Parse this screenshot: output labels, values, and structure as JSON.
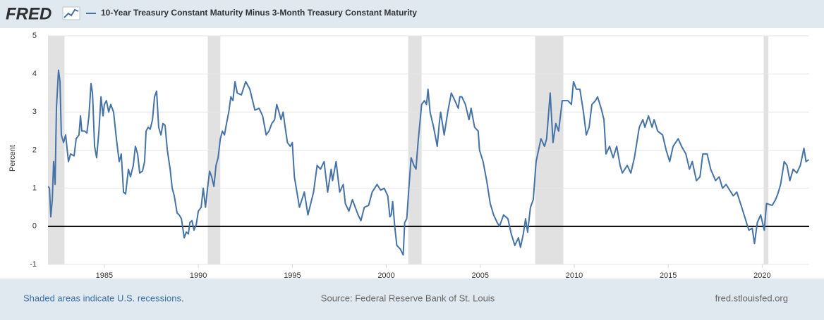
{
  "header": {
    "logo": "FRED"
  },
  "chart_data": {
    "type": "line",
    "y_label": "Percent",
    "xlim": [
      1982,
      2022.5
    ],
    "xticks": [
      1985,
      1990,
      1995,
      2000,
      2005,
      2010,
      2015,
      2020
    ],
    "ylim": [
      -1,
      5
    ],
    "yticks": [
      -1,
      0,
      1,
      2,
      3,
      4,
      5
    ],
    "grid": true,
    "recession_color": "#e1e1e1",
    "recessions": [
      [
        1981.5,
        1982.88
      ],
      [
        1990.5,
        1991.17
      ],
      [
        2001.17,
        2001.88
      ],
      [
        2007.92,
        2009.42
      ],
      [
        2020.08,
        2020.33
      ]
    ],
    "x": [
      1982.0,
      1982.08,
      1982.15,
      1982.23,
      1982.3,
      1982.38,
      1982.45,
      1982.56,
      1982.64,
      1982.71,
      1982.83,
      1982.94,
      1983.09,
      1983.2,
      1983.39,
      1983.5,
      1983.65,
      1983.73,
      1983.8,
      1983.95,
      1984.07,
      1984.18,
      1984.29,
      1984.37,
      1984.48,
      1984.59,
      1984.71,
      1984.82,
      1984.93,
      1985.0,
      1985.11,
      1985.23,
      1985.34,
      1985.49,
      1985.64,
      1985.79,
      1985.9,
      1986.02,
      1986.13,
      1986.28,
      1986.39,
      1986.54,
      1986.65,
      1986.77,
      1986.88,
      1987.03,
      1987.14,
      1987.22,
      1987.33,
      1987.44,
      1987.56,
      1987.67,
      1987.78,
      1987.89,
      1988.01,
      1988.12,
      1988.23,
      1988.35,
      1988.5,
      1988.61,
      1988.72,
      1988.87,
      1988.98,
      1989.1,
      1989.25,
      1989.36,
      1989.47,
      1989.55,
      1989.66,
      1989.77,
      1989.89,
      1990.0,
      1990.15,
      1990.26,
      1990.38,
      1990.49,
      1990.6,
      1990.71,
      1990.83,
      1990.94,
      1991.05,
      1991.17,
      1991.28,
      1991.39,
      1991.5,
      1991.62,
      1991.73,
      1991.84,
      1991.95,
      1992.07,
      1992.29,
      1992.52,
      1992.74,
      1993.01,
      1993.23,
      1993.42,
      1993.61,
      1993.76,
      1993.91,
      1994.06,
      1994.17,
      1994.29,
      1994.4,
      1994.51,
      1994.62,
      1994.74,
      1994.89,
      1995.0,
      1995.11,
      1995.38,
      1995.64,
      1995.83,
      1996.13,
      1996.32,
      1996.5,
      1996.69,
      1996.88,
      1997.07,
      1997.14,
      1997.33,
      1997.52,
      1997.71,
      1997.82,
      1998.01,
      1998.2,
      1998.5,
      1998.65,
      1998.83,
      1999.06,
      1999.25,
      1999.51,
      1999.7,
      1999.89,
      2000.08,
      2000.19,
      2000.26,
      2000.34,
      2000.45,
      2000.56,
      2000.75,
      2000.9,
      2000.98,
      2001.09,
      2001.2,
      2001.32,
      2001.47,
      2001.58,
      2001.69,
      2001.88,
      2002.03,
      2002.14,
      2002.22,
      2002.33,
      2002.52,
      2002.71,
      2002.82,
      2002.89,
      2003.08,
      2003.27,
      2003.46,
      2003.65,
      2003.83,
      2003.91,
      2004.02,
      2004.21,
      2004.4,
      2004.51,
      2004.7,
      2004.89,
      2004.96,
      2005.15,
      2005.34,
      2005.53,
      2005.71,
      2005.9,
      2006.02,
      2006.24,
      2006.47,
      2006.65,
      2006.84,
      2007.03,
      2007.14,
      2007.29,
      2007.41,
      2007.52,
      2007.67,
      2007.82,
      2007.97,
      2008.23,
      2008.42,
      2008.53,
      2008.72,
      2008.87,
      2009.02,
      2009.17,
      2009.36,
      2009.66,
      2009.85,
      2009.96,
      2010.11,
      2010.3,
      2010.49,
      2010.64,
      2010.79,
      2010.94,
      2011.13,
      2011.24,
      2011.43,
      2011.58,
      2011.69,
      2011.88,
      2012.07,
      2012.26,
      2012.44,
      2012.56,
      2012.82,
      2013.01,
      2013.2,
      2013.46,
      2013.65,
      2013.76,
      2013.95,
      2014.14,
      2014.25,
      2014.44,
      2014.7,
      2014.89,
      2015.08,
      2015.26,
      2015.53,
      2015.71,
      2015.94,
      2016.13,
      2016.28,
      2016.5,
      2016.69,
      2016.84,
      2017.07,
      2017.26,
      2017.52,
      2017.71,
      2017.89,
      2018.08,
      2018.46,
      2018.65,
      2018.91,
      2019.1,
      2019.29,
      2019.47,
      2019.59,
      2019.74,
      2019.92,
      2020.11,
      2020.23,
      2020.53,
      2020.71,
      2020.83,
      2020.98,
      2021.17,
      2021.32,
      2021.47,
      2021.65,
      2021.84,
      2022.03,
      2022.22,
      2022.33,
      2022.48
    ],
    "series": [
      {
        "name": "10-Year Treasury Constant Maturity Minus 3-Month Treasury Constant Maturity",
        "color": "#4572a7",
        "values": [
          1.05,
          1.0,
          0.25,
          0.7,
          1.7,
          1.1,
          3.1,
          4.1,
          3.8,
          2.4,
          2.2,
          2.4,
          1.7,
          1.9,
          1.85,
          2.3,
          2.4,
          2.9,
          2.5,
          2.5,
          2.45,
          2.9,
          3.75,
          3.5,
          2.1,
          1.8,
          2.5,
          3.4,
          2.9,
          3.2,
          3.3,
          3.0,
          3.2,
          3.0,
          2.3,
          1.7,
          1.9,
          0.9,
          0.85,
          1.5,
          1.3,
          1.6,
          2.1,
          1.9,
          1.4,
          1.45,
          1.7,
          2.5,
          2.6,
          2.55,
          2.8,
          3.4,
          3.55,
          2.6,
          2.4,
          2.7,
          2.65,
          2.0,
          1.5,
          1.0,
          0.8,
          0.35,
          0.3,
          0.2,
          -0.3,
          -0.15,
          -0.2,
          0.1,
          0.15,
          -0.1,
          0.05,
          0.4,
          0.5,
          1.0,
          0.5,
          1.0,
          1.45,
          1.3,
          1.05,
          1.6,
          1.8,
          2.3,
          2.5,
          2.4,
          2.7,
          3.0,
          3.4,
          3.3,
          3.8,
          3.5,
          3.45,
          3.8,
          3.6,
          3.05,
          3.1,
          2.9,
          2.4,
          2.5,
          2.7,
          2.8,
          3.2,
          3.0,
          2.8,
          3.0,
          2.6,
          2.2,
          2.1,
          2.2,
          1.3,
          0.5,
          0.9,
          0.3,
          0.9,
          1.6,
          1.5,
          1.7,
          0.9,
          1.5,
          1.2,
          1.7,
          0.9,
          1.1,
          0.6,
          0.4,
          0.7,
          0.3,
          0.15,
          0.5,
          0.55,
          0.9,
          1.1,
          0.95,
          1.0,
          0.8,
          0.25,
          0.3,
          0.65,
          0,
          -0.5,
          -0.6,
          -0.75,
          0.1,
          0.2,
          1.0,
          1.8,
          1.6,
          1.5,
          2.2,
          3.2,
          3.3,
          3.2,
          3.6,
          3.0,
          2.6,
          2.1,
          2.7,
          3.0,
          2.4,
          3.0,
          3.5,
          3.3,
          3.1,
          3.4,
          3.4,
          3.2,
          2.8,
          3.1,
          2.6,
          2.5,
          2.0,
          1.7,
          1.2,
          0.6,
          0.3,
          0.1,
          0,
          0.3,
          0.2,
          -0.2,
          -0.5,
          -0.3,
          -0.55,
          -0.2,
          0.2,
          -0.15,
          0.5,
          0.7,
          1.7,
          2.3,
          2.1,
          2.3,
          3.5,
          2.2,
          2.7,
          2.5,
          3.3,
          3.3,
          3.2,
          3.8,
          3.6,
          3.6,
          3.0,
          2.4,
          2.6,
          3.2,
          3.3,
          3.4,
          3.1,
          2.8,
          1.9,
          2.1,
          1.8,
          2.1,
          1.6,
          1.4,
          1.6,
          1.4,
          1.8,
          2.6,
          2.8,
          2.6,
          2.9,
          2.6,
          2.8,
          2.5,
          2.4,
          2.0,
          1.7,
          2.1,
          2.3,
          2.1,
          1.9,
          1.5,
          1.7,
          1.2,
          1.3,
          1.9,
          1.9,
          1.5,
          1.2,
          1.3,
          1.0,
          1.1,
          0.8,
          0.9,
          0.5,
          0.2,
          -0.1,
          -0.05,
          -0.45,
          0.1,
          0.3,
          -0.1,
          0.6,
          0.55,
          0.7,
          0.85,
          1.1,
          1.7,
          1.6,
          1.2,
          1.5,
          1.4,
          1.6,
          2.05,
          1.7,
          1.75
        ]
      }
    ]
  },
  "footer": {
    "note": "Shaded areas indicate U.S. recessions.",
    "source": "Source: Federal Reserve Bank of St. Louis",
    "url": "fred.stlouisfed.org"
  }
}
